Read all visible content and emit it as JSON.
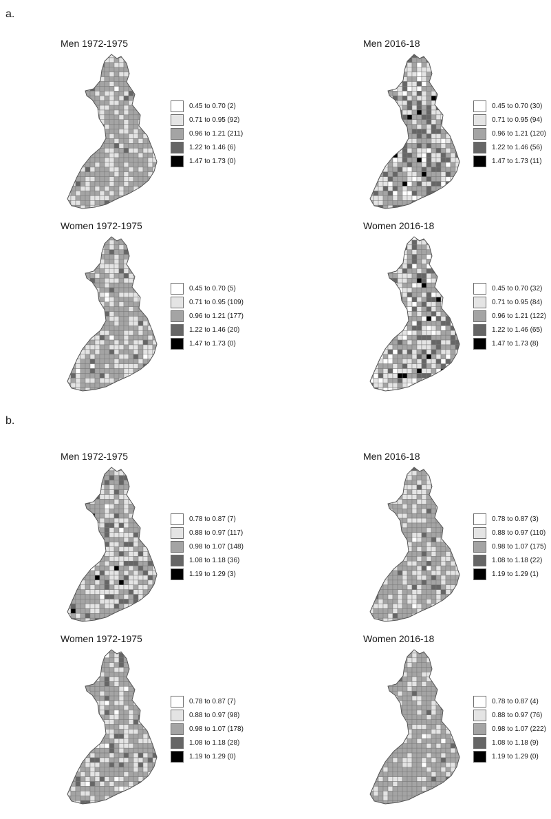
{
  "sections": [
    {
      "label": "a.",
      "panels": [
        {
          "title": "Men 1972-1975",
          "legend": [
            "0.45 to 0.70 (2)",
            "0.71 to 0.95 (92)",
            "0.96 to 1.21 (211)",
            "1.22 to 1.46 (6)",
            "1.47 to 1.73 (0)"
          ],
          "class_counts": [
            2,
            92,
            211,
            6,
            0
          ]
        },
        {
          "title": "Men 2016-18",
          "legend": [
            "0.45 to 0.70 (30)",
            "0.71 to 0.95 (94)",
            "0.96 to 1.21 (120)",
            "1.22 to 1.46 (56)",
            "1.47 to 1.73 (11)"
          ],
          "class_counts": [
            30,
            94,
            120,
            56,
            11
          ]
        },
        {
          "title": "Women 1972-1975",
          "legend": [
            "0.45 to 0.70 (5)",
            "0.71 to 0.95 (109)",
            "0.96 to 1.21 (177)",
            "1.22 to 1.46 (20)",
            "1.47 to 1.73 (0)"
          ],
          "class_counts": [
            5,
            109,
            177,
            20,
            0
          ]
        },
        {
          "title": "Women 2016-18",
          "legend": [
            "0.45 to 0.70 (32)",
            "0.71 to 0.95 (84)",
            "0.96 to 1.21 (122)",
            "1.22 to 1.46 (65)",
            "1.47 to 1.73 (8)"
          ],
          "class_counts": [
            32,
            84,
            122,
            65,
            8
          ]
        }
      ]
    },
    {
      "label": "b.",
      "panels": [
        {
          "title": "Men 1972-1975",
          "legend": [
            "0.78 to 0.87 (7)",
            "0.88 to 0.97 (117)",
            "0.98 to 1.07 (148)",
            "1.08 to 1.18 (36)",
            "1.19 to 1.29 (3)"
          ],
          "class_counts": [
            7,
            117,
            148,
            36,
            3
          ]
        },
        {
          "title": "Men 2016-18",
          "legend": [
            "0.78 to 0.87 (3)",
            "0.88 to 0.97 (110)",
            "0.98 to 1.07 (175)",
            "1.08 to 1.18 (22)",
            "1.19 to 1.29 (1)"
          ],
          "class_counts": [
            3,
            110,
            175,
            22,
            1
          ]
        },
        {
          "title": "Women 1972-1975",
          "legend": [
            "0.78 to 0.87 (7)",
            "0.88 to 0.97 (98)",
            "0.98 to 1.07 (178)",
            "1.08 to 1.18 (28)",
            "1.19 to 1.29 (0)"
          ],
          "class_counts": [
            7,
            98,
            178,
            28,
            0
          ]
        },
        {
          "title": "Women 2016-18",
          "legend": [
            "0.78 to 0.87 (4)",
            "0.88 to 0.97 (76)",
            "0.98 to 1.07 (222)",
            "1.08 to 1.18 (9)",
            "1.19 to 1.29 (0)"
          ],
          "class_counts": [
            4,
            76,
            222,
            9,
            0
          ]
        }
      ]
    }
  ],
  "class_colors": [
    "#ffffff",
    "#e4e4e4",
    "#a4a4a4",
    "#666666",
    "#000000"
  ],
  "boundary_color": "#7a7a7a"
}
